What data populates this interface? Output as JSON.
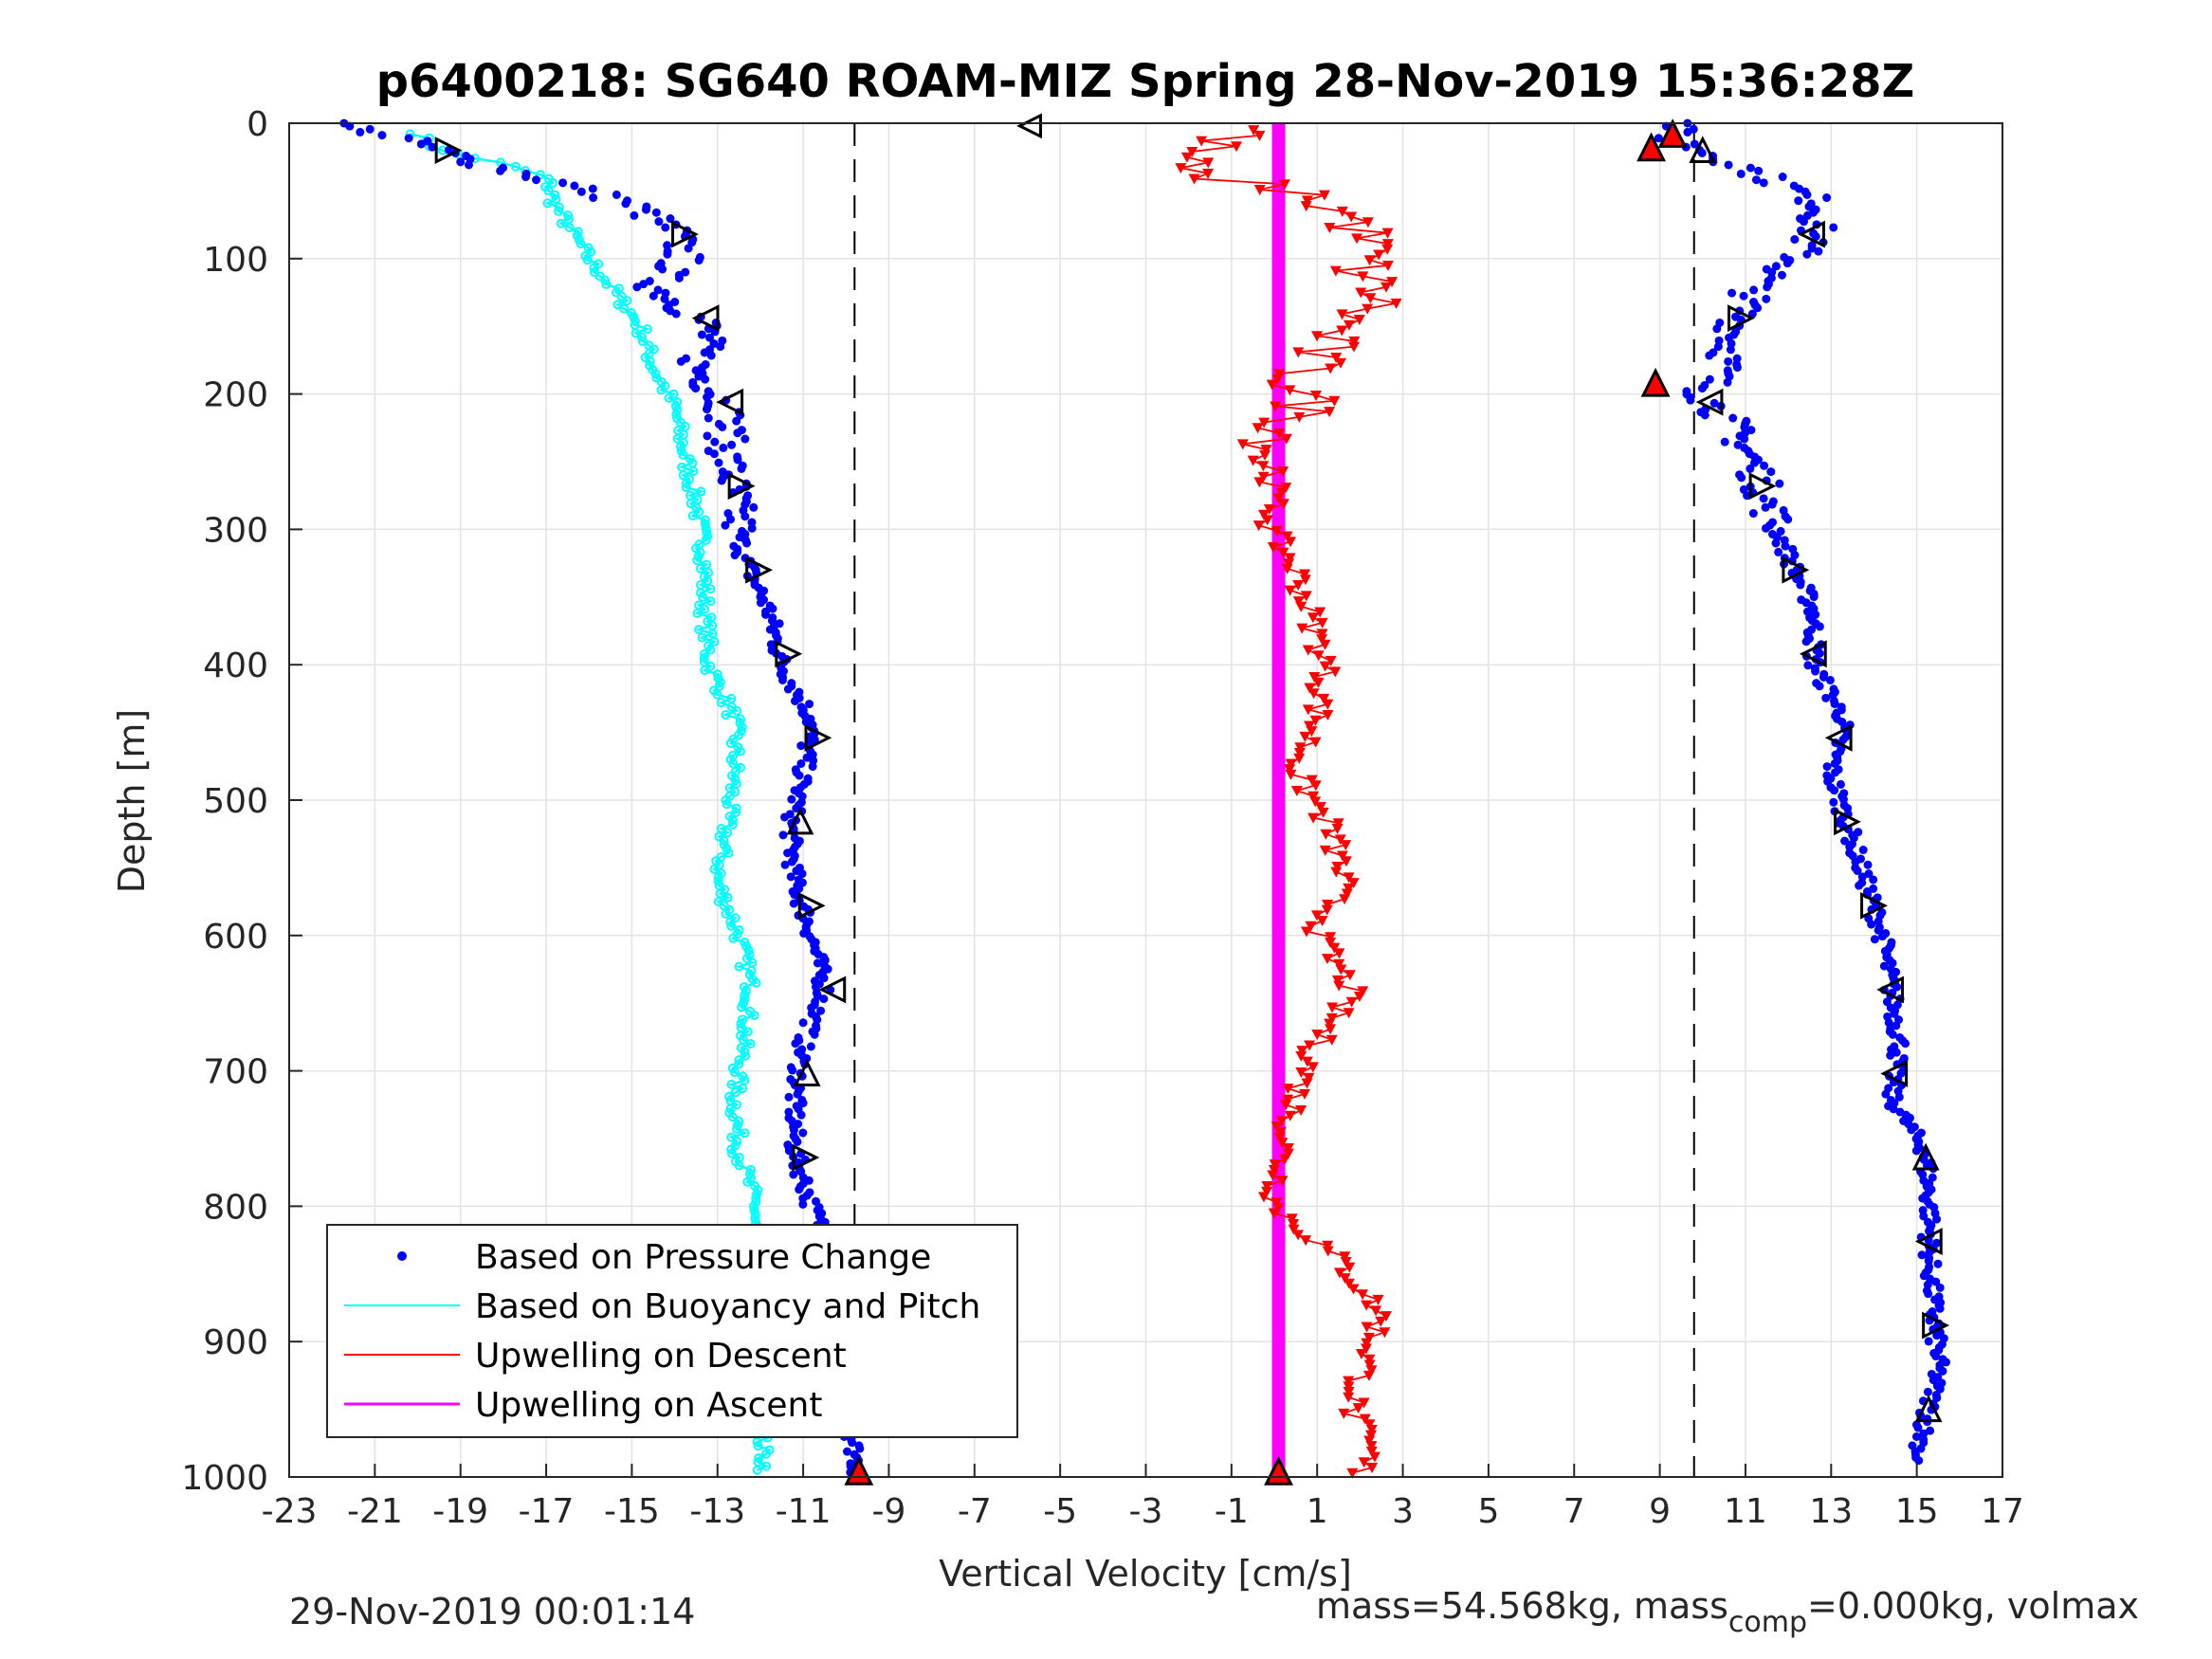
{
  "chart_data": {
    "type": "scatter",
    "title": "p6400218: SG640 ROAM-MIZ Spring 28-Nov-2019 15:36:28Z",
    "xlabel": "Vertical Velocity [cm/s]",
    "ylabel": "Depth [m]",
    "xlim": [
      -23,
      17
    ],
    "ylim": [
      0,
      1000
    ],
    "y_reversed": true,
    "grid": true,
    "xticks": [
      -23,
      -21,
      -19,
      -17,
      -15,
      -13,
      -11,
      -9,
      -7,
      -5,
      -3,
      -1,
      1,
      3,
      5,
      7,
      9,
      11,
      13,
      15,
      17
    ],
    "yticks": [
      0,
      100,
      200,
      300,
      400,
      500,
      600,
      700,
      800,
      900,
      1000
    ],
    "xtick_labels": [
      "-23",
      "-21",
      "-19",
      "-17",
      "-15",
      "-13",
      "-11",
      "-9",
      "-7",
      "-5",
      "-3",
      "-1",
      "1",
      "3",
      "5",
      "7",
      "9",
      "11",
      "13",
      "15",
      "17"
    ],
    "ytick_labels": [
      "0",
      "100",
      "200",
      "300",
      "400",
      "500",
      "600",
      "700",
      "800",
      "900",
      "1000"
    ],
    "legend_position": "bottom-left",
    "reference_lines": [
      {
        "x": -9.8,
        "style": "dashed",
        "color": "#000000"
      },
      {
        "x": 9.8,
        "style": "dashed",
        "color": "#000000"
      }
    ],
    "series": [
      {
        "name": "Based on Pressure Change",
        "style": "dots",
        "color": "#0000ff",
        "profiles": [
          {
            "depth": [
              0,
              10,
              20,
              30,
              40,
              50,
              60,
              80,
              100,
              120,
              150,
              180,
              210,
              240,
              280,
              320,
              360,
              400,
              440,
              480,
              520,
              560,
              600,
              640,
              680,
              720,
              760,
              800,
              840,
              880,
              920,
              960,
              1000
            ],
            "velocity": [
              -22,
              -20.5,
              -19.5,
              -18.5,
              -17.2,
              -16,
              -15,
              -14,
              -13.8,
              -14.5,
              -13.2,
              -13.5,
              -12.8,
              -12.8,
              -12.6,
              -12.4,
              -11.8,
              -11.5,
              -10.8,
              -11,
              -11.3,
              -11.2,
              -10.8,
              -10.5,
              -11,
              -11.2,
              -11.2,
              -10.8,
              -10.2,
              -9.8,
              -9.8,
              -9.9,
              -9.7
            ]
          },
          {
            "depth": [
              0,
              10,
              20,
              30,
              40,
              50,
              60,
              80,
              100,
              120,
              150,
              180,
              200,
              220,
              250,
              280,
              320,
              360,
              400,
              440,
              480,
              520,
              560,
              600,
              640,
              680,
              720,
              760,
              800,
              840,
              880,
              920,
              960,
              990
            ],
            "velocity": [
              9.5,
              9.2,
              10,
              10.8,
              11.5,
              12.2,
              12.8,
              12.6,
              12.2,
              11.2,
              10.8,
              10.5,
              10,
              10.6,
              11.2,
              11.5,
              12,
              12.6,
              12.6,
              13.3,
              13,
              13.4,
              13.8,
              14.2,
              14.4,
              14.6,
              14.4,
              15.2,
              15.3,
              15.3,
              15.4,
              15.5,
              15.2,
              15
            ]
          }
        ]
      },
      {
        "name": "Based on Buoyancy and Pitch",
        "style": "line-markers",
        "color": "#00ffff",
        "depth": [
          8,
          20,
          30,
          40,
          60,
          80,
          100,
          120,
          150,
          180,
          210,
          240,
          280,
          320,
          360,
          400,
          440,
          480,
          520,
          560,
          600,
          640,
          680,
          720,
          760,
          800,
          840,
          880,
          920,
          960,
          995
        ],
        "velocity": [
          -20,
          -19.5,
          -18,
          -17,
          -16.8,
          -16.4,
          -16,
          -15.5,
          -14.8,
          -14.5,
          -14,
          -13.8,
          -13.5,
          -13.3,
          -13.3,
          -13.2,
          -12.6,
          -12.6,
          -12.8,
          -13,
          -12.5,
          -12.2,
          -12.4,
          -12.6,
          -12.5,
          -12.1,
          -12.2,
          -12.2,
          -12,
          -12,
          -11.9
        ]
      },
      {
        "name": "Upwelling on Descent",
        "style": "line-triangle-down",
        "color": "#ff0000",
        "depth": [
          5,
          20,
          35,
          50,
          70,
          90,
          110,
          130,
          150,
          170,
          190,
          210,
          230,
          250,
          270,
          300,
          330,
          360,
          400,
          440,
          480,
          520,
          560,
          600,
          640,
          680,
          720,
          760,
          800,
          840,
          880,
          920,
          950,
          980,
          1000
        ],
        "velocity": [
          -0.5,
          -1.8,
          -2.5,
          0.5,
          1.8,
          2.2,
          2,
          2.5,
          1.5,
          1,
          0.5,
          0.8,
          0.2,
          -0.2,
          0,
          -0.1,
          0.5,
          0.8,
          1.2,
          1,
          0.5,
          1.3,
          1.6,
          1,
          1.8,
          1,
          0.5,
          0.2,
          0,
          1.5,
          2.5,
          2.1,
          1.8,
          2.2,
          2
        ]
      },
      {
        "name": "Upwelling on Ascent",
        "style": "line-thick",
        "color": "#ff00ff",
        "depth": [
          0,
          1000
        ],
        "velocity": [
          0.1,
          0.1
        ]
      }
    ],
    "annotations": [
      {
        "type": "open-triangle-left",
        "x": -5.7,
        "depth": 2
      },
      {
        "type": "filled-triangle-up",
        "color": "#ff0000",
        "x": 9.3,
        "depth": 8
      },
      {
        "type": "filled-triangle-up",
        "color": "#ff0000",
        "x": 8.8,
        "depth": 18
      },
      {
        "type": "filled-triangle-up",
        "color": "#ff0000",
        "x": 8.9,
        "depth": 192
      },
      {
        "type": "filled-triangle-up",
        "color": "#ff0000",
        "x": -9.7,
        "depth": 996
      },
      {
        "type": "filled-triangle-up",
        "color": "#ff0000",
        "x": 0.1,
        "depth": 996
      }
    ]
  },
  "footer_left": "29-Nov-2019 00:01:14",
  "footer_right": {
    "text1": "mass=54.568kg, mass",
    "sub": "comp",
    "text2": "=0.000kg, volmax"
  }
}
